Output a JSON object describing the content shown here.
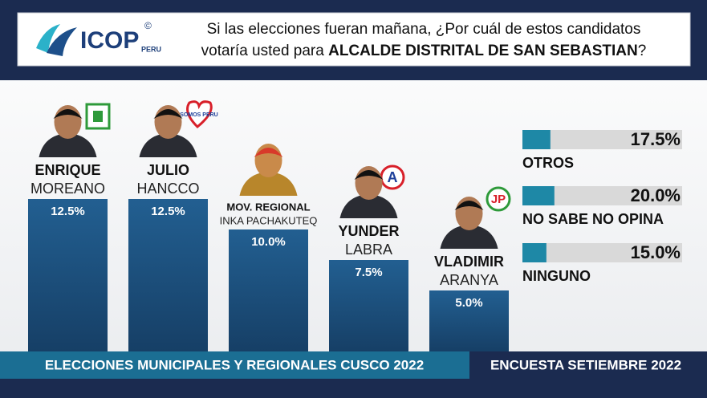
{
  "header": {
    "brand": "ICOP",
    "brand_sub": "PERU",
    "copyright": "©",
    "question": "Si las elecciones fueran mañana, ¿Por cuál de estos candidatos",
    "question_line2": "votaría usted para",
    "question_bold": "ALCALDE DISTRITAL DE SAN SEBASTIAN",
    "question_end": "?"
  },
  "logos": {
    "somos_peru": "SOMOS PERU",
    "accion_popular": "A",
    "juntos_peru": "JP"
  },
  "chart_data": {
    "type": "bar",
    "color": "#1c5585",
    "categories": [
      [
        "ENRIQUE",
        "MOREANO"
      ],
      [
        "JULIO",
        "HANCCO"
      ],
      [
        "MOV. REGIONAL",
        "INKA PACHAKUTEQ"
      ],
      [
        "YUNDER",
        "LABRA"
      ],
      [
        "VLADIMIR",
        "ARANYA"
      ]
    ],
    "values": [
      12.5,
      12.5,
      10.0,
      7.5,
      5.0
    ],
    "value_labels": [
      "12.5%",
      "12.5%",
      "10.0%",
      "7.5%",
      "5.0%"
    ]
  },
  "side_chart": {
    "type": "bar",
    "color": "#1e88a6",
    "track_color": "#d9d9d9",
    "xlim": [
      0,
      100
    ],
    "categories": [
      "OTROS",
      "NO SABE NO OPINA",
      "NINGUNO"
    ],
    "values": [
      17.5,
      20.0,
      15.0
    ],
    "value_labels": [
      "17.5%",
      "20.0%",
      "15.0%"
    ]
  },
  "footer": {
    "left": "ELECCIONES MUNICIPALES Y REGIONALES CUSCO 2022",
    "right": "ENCUESTA SETIEMBRE 2022"
  }
}
